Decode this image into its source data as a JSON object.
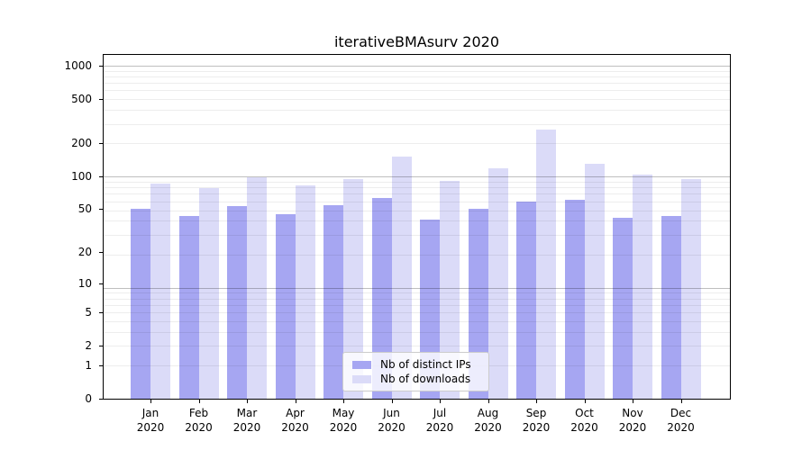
{
  "chart_data": {
    "type": "bar",
    "title": "iterativeBMAsurv 2020",
    "x_axis": {
      "months": [
        "Jan",
        "Feb",
        "Mar",
        "Apr",
        "May",
        "Jun",
        "Jul",
        "Aug",
        "Sep",
        "Oct",
        "Nov",
        "Dec"
      ],
      "year_label": "2020"
    },
    "y_axis": {
      "scale": "log1p",
      "ticks": [
        0,
        1,
        2,
        5,
        10,
        20,
        50,
        100,
        200,
        500,
        1000
      ],
      "max": 1250
    },
    "series": [
      {
        "key": "distinct-ips",
        "name": "Nb of distinct IPs",
        "color": "#a6a6f2",
        "values": [
          50,
          43,
          53,
          45,
          54,
          63,
          40,
          50,
          59,
          61,
          42,
          43
        ]
      },
      {
        "key": "downloads",
        "name": "Nb of downloads",
        "color": "#dbdbf8",
        "values": [
          86,
          78,
          97,
          82,
          94,
          152,
          90,
          118,
          263,
          130,
          103,
          94
        ]
      }
    ],
    "legend": {
      "position": "lower center"
    },
    "grid": true,
    "colors": {
      "spine": "#000000",
      "grid_minor": "#ededed",
      "grid_major": "#c0c0c0"
    }
  }
}
